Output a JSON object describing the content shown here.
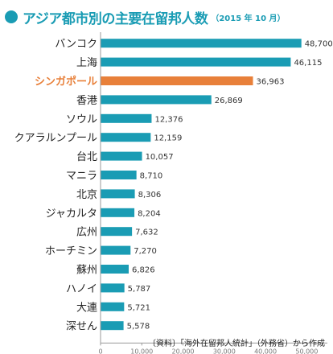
{
  "header": {
    "title": "アジア都市別の主要在留邦人数",
    "subtitle": "（2015 年 10 月）"
  },
  "source": "〔資料〕「海外在留邦人統計」（外務省）から作成",
  "colors": {
    "bar": "#1a9cb4",
    "highlight_bar": "#e8803a",
    "highlight_label": "#e8803a",
    "axis": "#999999"
  },
  "chart_data": {
    "type": "bar",
    "orientation": "horizontal",
    "categories": [
      "バンコク",
      "上海",
      "シンガポール",
      "香港",
      "ソウル",
      "クアラルンプール",
      "台北",
      "マニラ",
      "北京",
      "ジャカルタ",
      "広州",
      "ホーチミン",
      "蘇州",
      "ハノイ",
      "大連",
      "深せん"
    ],
    "values": [
      48700,
      46115,
      36963,
      26869,
      12376,
      12159,
      10057,
      8710,
      8306,
      8204,
      7632,
      7270,
      6826,
      5787,
      5721,
      5578
    ],
    "value_labels": [
      "48,700",
      "46,115",
      "36,963",
      "26,869",
      "12,376",
      "12,159",
      "10,057",
      "8,710",
      "8,306",
      "8,204",
      "7,632",
      "7,270",
      "6,826",
      "5,787",
      "5,721",
      "5,578"
    ],
    "highlight_index": 2,
    "xlim": [
      0,
      55000
    ],
    "xticks": [
      0,
      10000,
      20000,
      30000,
      40000,
      50000
    ],
    "xtick_labels": [
      "0",
      "10,000",
      "20,000",
      "30,000",
      "40,000",
      "50,000"
    ],
    "grid": false
  }
}
